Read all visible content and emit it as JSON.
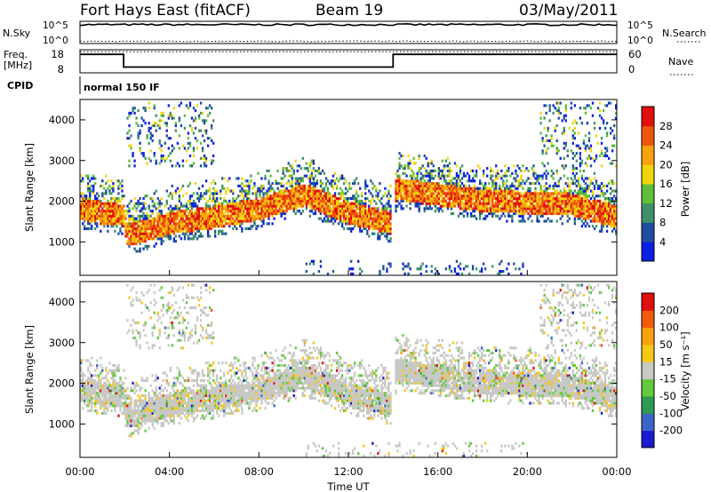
{
  "header": {
    "station": "Fort Hays East (fitACF)",
    "beam": "Beam 19",
    "date": "03/May/2011"
  },
  "top_panels": {
    "nsky_label": "N.Sky",
    "nsky_ticks": [
      "10^5",
      "10^0"
    ],
    "nsearch_label": "N.Search",
    "nsearch_ticks": [
      "10^5",
      "10^0"
    ],
    "freq_label_line1": "Freq.",
    "freq_label_line2": "[MHz]",
    "freq_ticks": [
      "18",
      "8"
    ],
    "nave_label": "Nave",
    "nave_ticks": [
      "60",
      "0"
    ],
    "cpid_label": "CPID",
    "cpid_text": "normal 150 IF"
  },
  "chart_data": [
    {
      "type": "heatmap",
      "name": "power",
      "ylabel": "Slant Range [km]",
      "xlabel": "",
      "ylim": [
        180,
        4500
      ],
      "y_ticks": [
        "1000",
        "2000",
        "3000",
        "4000"
      ],
      "colorbar_label": "Power [dB]",
      "colorbar_ticks": [
        "4",
        "8",
        "12",
        "16",
        "20",
        "24",
        "28"
      ],
      "colors": [
        "#0a1ee6",
        "#1e4ea0",
        "#3f8f6a",
        "#5fbe3a",
        "#f2d40e",
        "#f6a20c",
        "#f0560a",
        "#e10e0e"
      ],
      "band_center_km": [
        [
          0,
          1800
        ],
        [
          1,
          1700
        ],
        [
          1.9,
          1650
        ],
        [
          2.1,
          1150
        ],
        [
          4,
          1450
        ],
        [
          6,
          1600
        ],
        [
          8,
          1800
        ],
        [
          10,
          2150
        ],
        [
          12,
          1700
        ],
        [
          13.9,
          1450
        ],
        [
          14.1,
          2300
        ],
        [
          16,
          2150
        ],
        [
          18,
          2000
        ],
        [
          20,
          1950
        ],
        [
          22,
          1900
        ],
        [
          24,
          1600
        ]
      ]
    },
    {
      "type": "heatmap",
      "name": "velocity",
      "ylabel": "Slant Range [km]",
      "xlabel": "Time UT",
      "ylim": [
        180,
        4500
      ],
      "y_ticks": [
        "1000",
        "2000",
        "3000",
        "4000"
      ],
      "x_ticks": [
        "00:00",
        "04:00",
        "08:00",
        "12:00",
        "16:00",
        "20:00",
        "00:00"
      ],
      "colorbar_label": "Velocity [m s⁻¹]",
      "colorbar_ticks": [
        "200",
        "100",
        "50",
        "15",
        "-15",
        "-50",
        "-100",
        "-200"
      ],
      "colors": [
        "#1a1ad0",
        "#3a66c8",
        "#2f9a52",
        "#62c93b",
        "#c8c8c4",
        "#f6c816",
        "#f6a20c",
        "#f05a0a",
        "#e10e0e"
      ]
    }
  ],
  "timeseries": {
    "freq_mhz": [
      [
        0,
        16
      ],
      [
        1.95,
        16
      ],
      [
        1.95,
        10.5
      ],
      [
        14,
        10.5
      ],
      [
        14,
        16
      ],
      [
        24,
        16
      ]
    ],
    "nave_level": 55,
    "nsky_level": 0.85,
    "nsearch_level": 0.1
  }
}
